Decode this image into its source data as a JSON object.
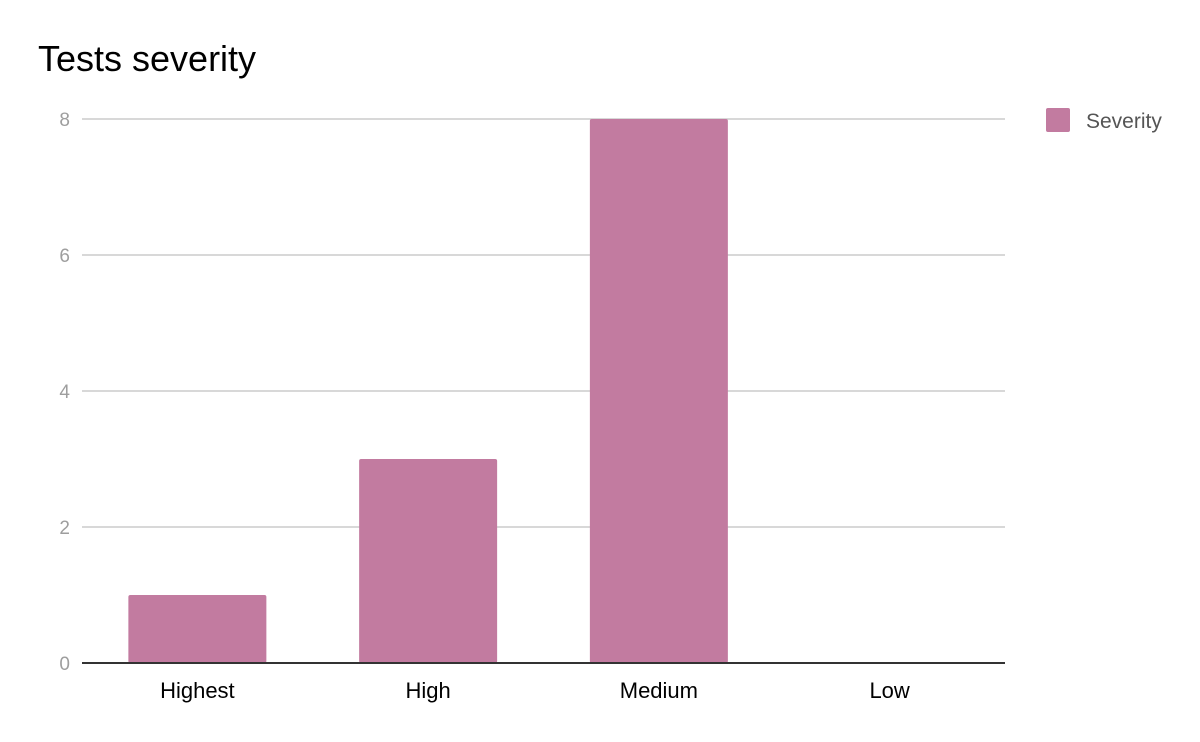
{
  "chart_data": {
    "type": "bar",
    "title": "Tests severity",
    "xlabel": "",
    "ylabel": "",
    "categories": [
      "Highest",
      "High",
      "Medium",
      "Low"
    ],
    "series": [
      {
        "name": "Severity",
        "values": [
          1,
          3,
          8,
          0
        ],
        "color": "#c27ba0"
      }
    ],
    "ylim": [
      0,
      8
    ],
    "yticks": [
      0,
      2,
      4,
      6,
      8
    ],
    "grid": true,
    "legend": "top-right"
  }
}
